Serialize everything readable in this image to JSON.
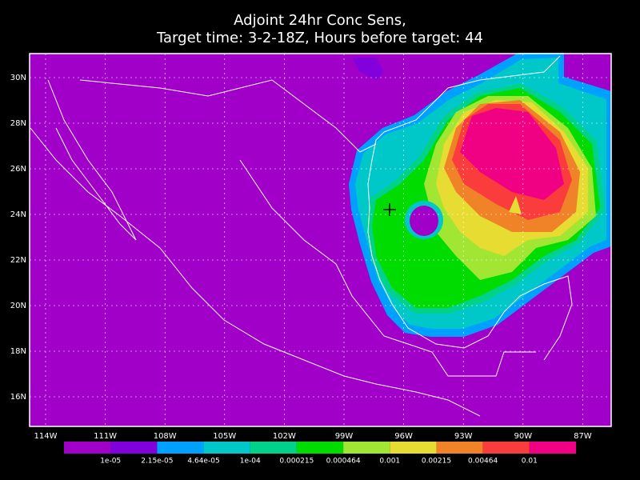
{
  "title": [
    "Adjoint 24hr Conc Sens,",
    "Target time: 3-2-18Z, Hours before target: 44"
  ],
  "lat_labels": [
    "30N",
    "28N",
    "26N",
    "24N",
    "22N",
    "20N",
    "18N",
    "16N"
  ],
  "lon_labels": [
    "114W",
    "111W",
    "108W",
    "105W",
    "102W",
    "99W",
    "96W",
    "93W",
    "90W",
    "87W"
  ],
  "colorbar": {
    "colors": [
      "#a000c8",
      "#8200dc",
      "#00a0ff",
      "#00c8c8",
      "#00d28c",
      "#00dc00",
      "#a0e632",
      "#e6dc32",
      "#f08228",
      "#fa3c3c",
      "#f00082"
    ],
    "labels": [
      "1e-05",
      "2.15e-05",
      "4.64e-05",
      "1e-04",
      "0.000215",
      "0.000464",
      "0.001",
      "0.00215",
      "0.00464",
      "0.01"
    ]
  }
}
